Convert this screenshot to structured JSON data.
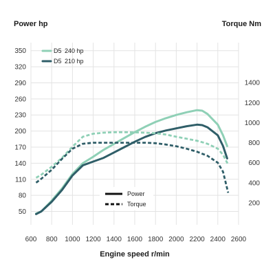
{
  "chart_data": {
    "type": "line",
    "title_left": "Power hp",
    "title_right": "Torque Nm",
    "xlabel": "Engine speed r/min",
    "x_ticks": [
      "600",
      "800",
      "1000",
      "1200",
      "1400",
      "1600",
      "1800",
      "2000",
      "2200",
      "2400",
      "2600"
    ],
    "y_left_ticks": [
      "350",
      "320",
      "290",
      "260",
      "230",
      "200",
      "170",
      "140",
      "110",
      "80",
      "50"
    ],
    "y_right_ticks": [
      "1400",
      "1200",
      "1000",
      "800",
      "600",
      "400",
      "200"
    ],
    "xlim": [
      600,
      2600
    ],
    "ylim_left": [
      25,
      365
    ],
    "ylim_right": [
      -20,
      1800
    ],
    "grid": true,
    "colors": {
      "d5_240": "#8fd0b6",
      "d5_210": "#2f5e68"
    },
    "series_legend": [
      {
        "name": "D5",
        "value": "240 hp"
      },
      {
        "name": "D5",
        "value": "210 hp"
      }
    ],
    "style_legend": {
      "solid": "Power",
      "dashed": "Torque"
    },
    "series": [
      {
        "key": "power_240",
        "axis": "left",
        "style": "solid",
        "color_key": "d5_240",
        "points": [
          [
            650,
            46
          ],
          [
            700,
            50
          ],
          [
            800,
            70
          ],
          [
            900,
            93
          ],
          [
            1000,
            120
          ],
          [
            1100,
            140
          ],
          [
            1200,
            152
          ],
          [
            1300,
            165
          ],
          [
            1400,
            176
          ],
          [
            1500,
            187
          ],
          [
            1600,
            198
          ],
          [
            1700,
            208
          ],
          [
            1800,
            217
          ],
          [
            1900,
            224
          ],
          [
            2000,
            230
          ],
          [
            2100,
            235
          ],
          [
            2200,
            239
          ],
          [
            2250,
            238
          ],
          [
            2300,
            232
          ],
          [
            2400,
            212
          ],
          [
            2450,
            192
          ],
          [
            2490,
            172
          ]
        ]
      },
      {
        "key": "power_210",
        "axis": "left",
        "style": "solid",
        "color_key": "d5_210",
        "points": [
          [
            650,
            45
          ],
          [
            700,
            50
          ],
          [
            800,
            68
          ],
          [
            900,
            90
          ],
          [
            1000,
            117
          ],
          [
            1100,
            136
          ],
          [
            1200,
            143
          ],
          [
            1300,
            150
          ],
          [
            1400,
            160
          ],
          [
            1500,
            170
          ],
          [
            1600,
            180
          ],
          [
            1700,
            189
          ],
          [
            1800,
            196
          ],
          [
            1900,
            201
          ],
          [
            2000,
            205
          ],
          [
            2100,
            209
          ],
          [
            2200,
            212
          ],
          [
            2250,
            211
          ],
          [
            2300,
            207
          ],
          [
            2400,
            192
          ],
          [
            2450,
            172
          ],
          [
            2490,
            149
          ]
        ]
      },
      {
        "key": "torque_240",
        "axis": "right",
        "style": "dashed",
        "color_key": "d5_240",
        "points": [
          [
            650,
            450
          ],
          [
            700,
            480
          ],
          [
            800,
            560
          ],
          [
            900,
            650
          ],
          [
            1000,
            760
          ],
          [
            1100,
            860
          ],
          [
            1200,
            890
          ],
          [
            1300,
            900
          ],
          [
            1400,
            905
          ],
          [
            1500,
            905
          ],
          [
            1600,
            903
          ],
          [
            1700,
            900
          ],
          [
            1800,
            895
          ],
          [
            1900,
            882
          ],
          [
            2000,
            860
          ],
          [
            2100,
            840
          ],
          [
            2200,
            820
          ],
          [
            2300,
            790
          ],
          [
            2400,
            740
          ],
          [
            2450,
            680
          ],
          [
            2500,
            580
          ]
        ]
      },
      {
        "key": "torque_210",
        "axis": "right",
        "style": "dashed",
        "color_key": "d5_210",
        "points": [
          [
            650,
            400
          ],
          [
            700,
            440
          ],
          [
            800,
            530
          ],
          [
            900,
            640
          ],
          [
            1000,
            740
          ],
          [
            1100,
            790
          ],
          [
            1200,
            800
          ],
          [
            1300,
            800
          ],
          [
            1400,
            800
          ],
          [
            1500,
            800
          ],
          [
            1600,
            800
          ],
          [
            1700,
            800
          ],
          [
            1800,
            795
          ],
          [
            1900,
            782
          ],
          [
            2000,
            765
          ],
          [
            2100,
            740
          ],
          [
            2200,
            710
          ],
          [
            2300,
            670
          ],
          [
            2400,
            600
          ],
          [
            2450,
            510
          ],
          [
            2500,
            300
          ]
        ]
      }
    ]
  }
}
